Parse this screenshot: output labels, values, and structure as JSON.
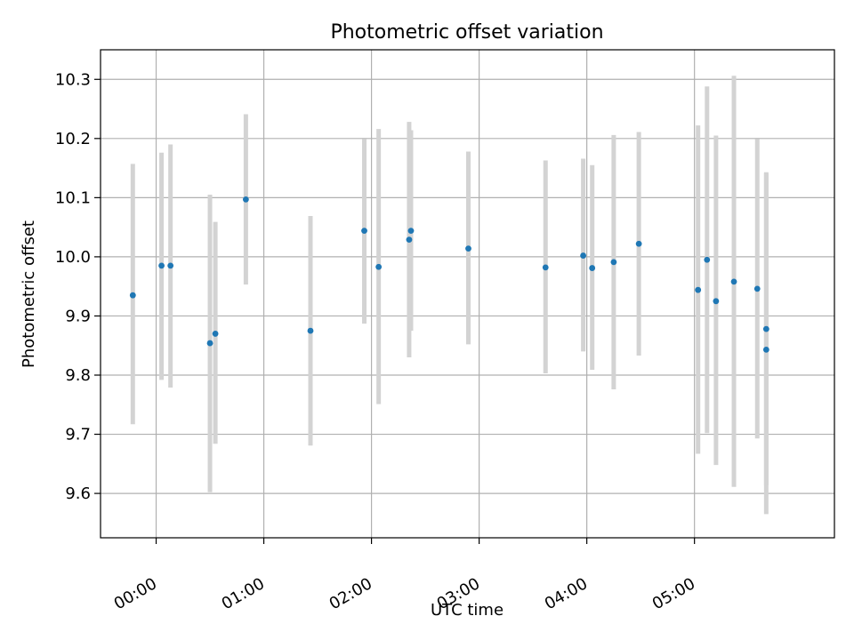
{
  "chart_data": {
    "type": "scatter",
    "title": "Photometric offset variation",
    "xlabel": "UTC time",
    "ylabel": "Photometric offset",
    "x_unit": "UTC time (HH:MM)",
    "xlim": [
      "-00:31",
      "06:18"
    ],
    "ylim": [
      9.525,
      10.35
    ],
    "xticks": [
      "00:00",
      "01:00",
      "02:00",
      "03:00",
      "04:00",
      "05:00"
    ],
    "yticks": [
      9.6,
      9.7,
      9.8,
      9.9,
      10.0,
      10.1,
      10.2,
      10.3
    ],
    "grid": true,
    "point_color": "#1f77b4",
    "errorbar_color": "#d3d3d3",
    "points": [
      {
        "x": "23:47",
        "y": 9.935,
        "lo": 9.717,
        "hi": 10.157
      },
      {
        "x": "00:03",
        "y": 9.985,
        "lo": 9.792,
        "hi": 10.176
      },
      {
        "x": "00:08",
        "y": 9.985,
        "lo": 9.779,
        "hi": 10.19
      },
      {
        "x": "00:30",
        "y": 9.854,
        "lo": 9.602,
        "hi": 10.105
      },
      {
        "x": "00:33",
        "y": 9.87,
        "lo": 9.684,
        "hi": 10.059
      },
      {
        "x": "00:50",
        "y": 10.097,
        "lo": 9.953,
        "hi": 10.241
      },
      {
        "x": "01:26",
        "y": 9.875,
        "lo": 9.681,
        "hi": 10.069
      },
      {
        "x": "01:56",
        "y": 10.044,
        "lo": 9.887,
        "hi": 10.199
      },
      {
        "x": "02:04",
        "y": 9.983,
        "lo": 9.751,
        "hi": 10.216
      },
      {
        "x": "02:21",
        "y": 10.029,
        "lo": 9.83,
        "hi": 10.228
      },
      {
        "x": "02:22",
        "y": 10.044,
        "lo": 9.875,
        "hi": 10.214
      },
      {
        "x": "02:54",
        "y": 10.014,
        "lo": 9.852,
        "hi": 10.178
      },
      {
        "x": "03:37",
        "y": 9.982,
        "lo": 9.803,
        "hi": 10.163
      },
      {
        "x": "03:58",
        "y": 10.002,
        "lo": 9.84,
        "hi": 10.166
      },
      {
        "x": "04:03",
        "y": 9.981,
        "lo": 9.809,
        "hi": 10.155
      },
      {
        "x": "04:15",
        "y": 9.991,
        "lo": 9.776,
        "hi": 10.206
      },
      {
        "x": "04:29",
        "y": 10.022,
        "lo": 9.833,
        "hi": 10.211
      },
      {
        "x": "05:02",
        "y": 9.944,
        "lo": 9.667,
        "hi": 10.222
      },
      {
        "x": "05:07",
        "y": 9.995,
        "lo": 9.702,
        "hi": 10.288
      },
      {
        "x": "05:12",
        "y": 9.925,
        "lo": 9.648,
        "hi": 10.205
      },
      {
        "x": "05:22",
        "y": 9.958,
        "lo": 9.611,
        "hi": 10.306
      },
      {
        "x": "05:35",
        "y": 9.946,
        "lo": 9.693,
        "hi": 10.199
      },
      {
        "x": "05:40",
        "y": 9.878,
        "lo": 9.614,
        "hi": 10.143
      },
      {
        "x": "05:40",
        "y": 9.843,
        "lo": 9.565,
        "hi": 10.141
      }
    ]
  }
}
